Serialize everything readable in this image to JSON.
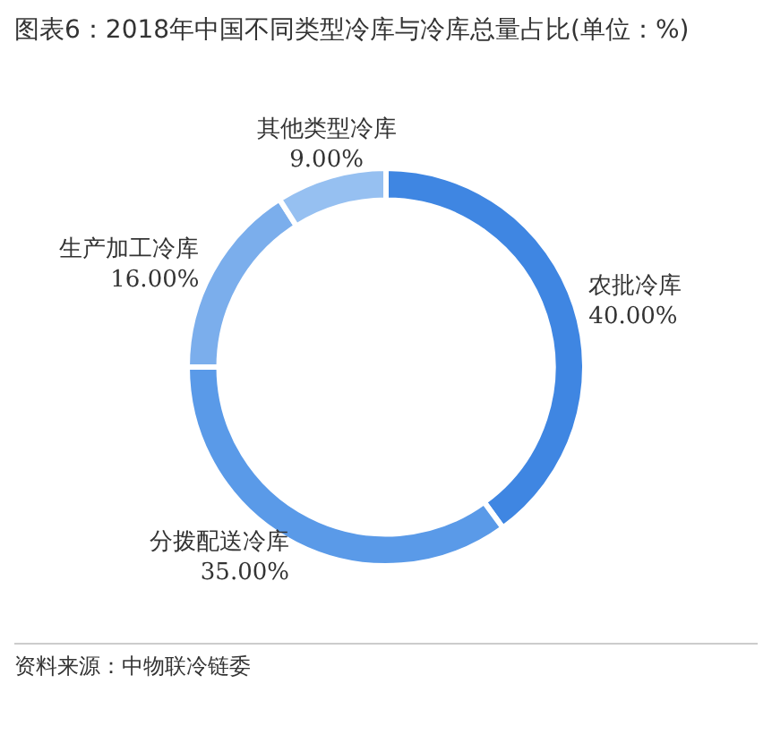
{
  "chart_data": {
    "type": "donut",
    "title": "图表6：2018年中国不同类型冷库与冷库总量占比(单位：%)",
    "categories": [
      "农批冷库",
      "分拨配送冷库",
      "生产加工冷库",
      "其他类型冷库"
    ],
    "values": [
      40,
      35,
      16,
      9
    ],
    "colors": [
      "#3f86e2",
      "#5a9ae8",
      "#7baeec",
      "#96c0f1"
    ],
    "value_labels": [
      "40.00%",
      "35.00%",
      "16.00%",
      "9.00%"
    ],
    "legend": false,
    "annotations": [
      "资料来源：中物联冷链委"
    ]
  }
}
